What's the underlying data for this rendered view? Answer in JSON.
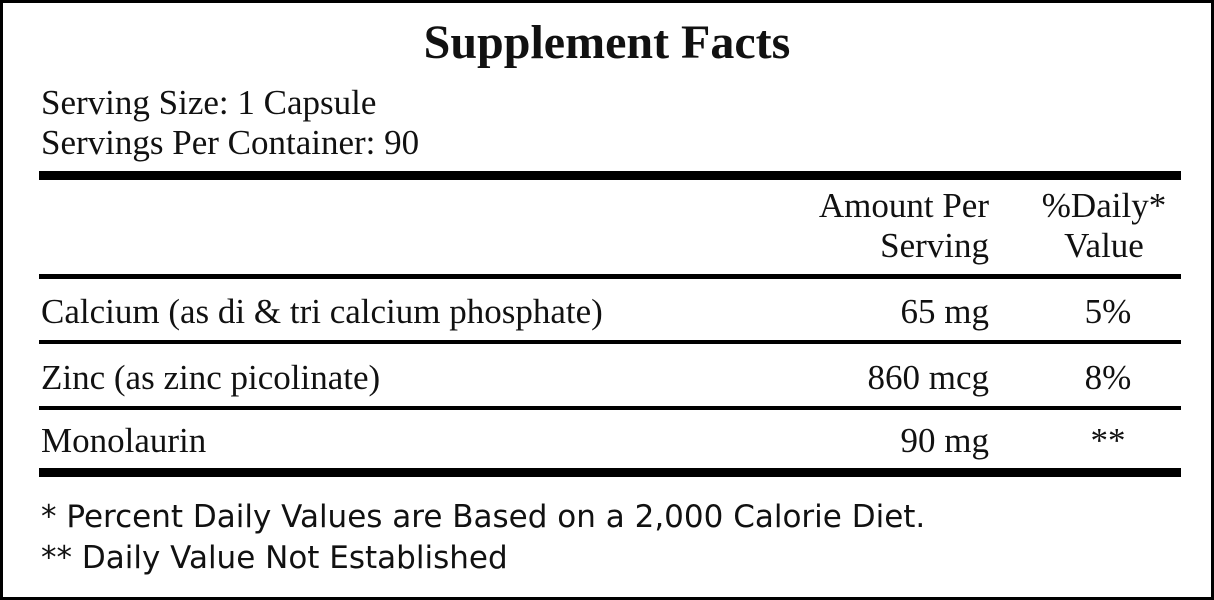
{
  "title": "Supplement Facts",
  "serving_size": "Serving Size: 1 Capsule",
  "servings_per_container": "Servings Per Container: 90",
  "table": {
    "header": [
      [
        "Amount Per",
        "Serving"
      ],
      [
        "%Daily*",
        "Value"
      ]
    ],
    "rows": [
      [
        "Calcium (as di & tri calcium phosphate)",
        "65 mg",
        "5%"
      ],
      [
        "Zinc (as zinc picolinate)",
        "860 mcg",
        "8%"
      ],
      [
        "Monolaurin",
        "90 mg",
        "**"
      ]
    ]
  },
  "footnotes": [
    "* Percent Daily Values are Based on a 2,000 Calorie Diet.",
    "** Daily Value Not Established"
  ]
}
